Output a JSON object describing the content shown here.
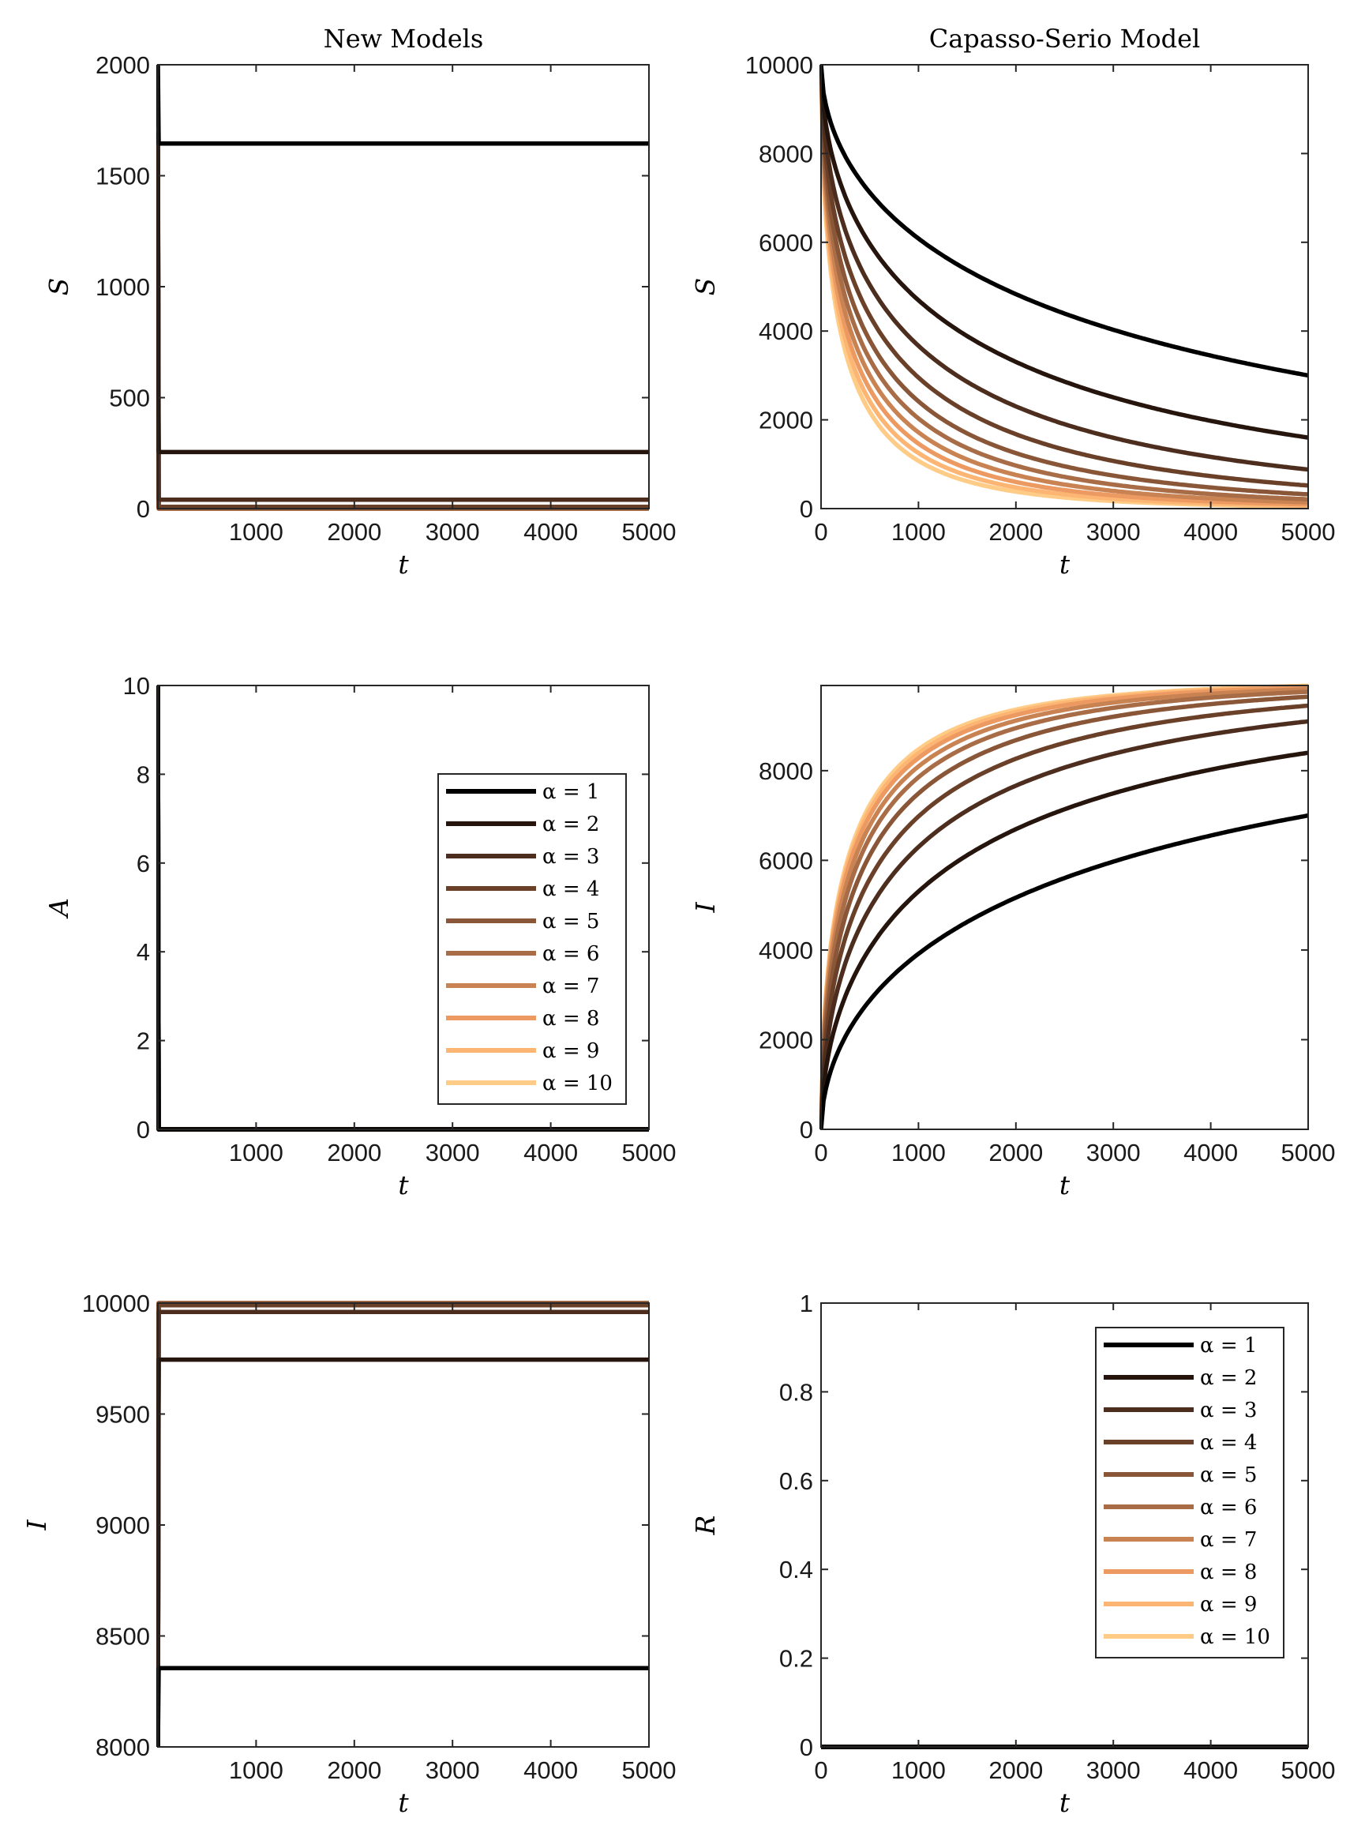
{
  "chart_data": [
    {
      "id": "new-S",
      "type": "line",
      "column": "left",
      "title": "New Models",
      "xlabel": "t",
      "ylabel": "S",
      "xlim": [
        0,
        5000
      ],
      "ylim": [
        0,
        2000
      ],
      "xticks": [
        "1000",
        "2000",
        "3000",
        "4000",
        "5000"
      ],
      "yticks": [
        "0",
        "500",
        "1000",
        "1500",
        "2000"
      ],
      "series": [
        {
          "name": "α = 1",
          "plateau": 1645,
          "start": 2000
        },
        {
          "name": "α = 2",
          "plateau": 255,
          "start": 1700
        },
        {
          "name": "α = 3",
          "plateau": 40,
          "start": 1660
        },
        {
          "name": "α = 4",
          "plateau": 8,
          "start": 1640
        },
        {
          "name": "α = 5",
          "plateau": 2,
          "start": 1620
        },
        {
          "name": "α = 6",
          "plateau": 0,
          "start": 1600
        },
        {
          "name": "α = 7",
          "plateau": 0,
          "start": 1580
        },
        {
          "name": "α = 8",
          "plateau": 0,
          "start": 1560
        },
        {
          "name": "α = 9",
          "plateau": 0,
          "start": 1550
        },
        {
          "name": "α = 10",
          "plateau": 0,
          "start": 1450
        }
      ]
    },
    {
      "id": "capasso-S",
      "type": "line",
      "column": "right",
      "title": "Capasso-Serio Model",
      "xlabel": "t",
      "ylabel": "S",
      "xlim": [
        0,
        5000
      ],
      "ylim": [
        0,
        10000
      ],
      "xticks": [
        "0",
        "1000",
        "2000",
        "3000",
        "4000",
        "5000"
      ],
      "yticks": [
        "0",
        "2000",
        "4000",
        "6000",
        "8000",
        "10000"
      ],
      "series": [
        {
          "name": "α = 1",
          "start": 10000,
          "end": 3000
        },
        {
          "name": "α = 2",
          "start": 10000,
          "end": 1600
        },
        {
          "name": "α = 3",
          "start": 10000,
          "end": 880
        },
        {
          "name": "α = 4",
          "start": 10000,
          "end": 520
        },
        {
          "name": "α = 5",
          "start": 10000,
          "end": 320
        },
        {
          "name": "α = 6",
          "start": 10000,
          "end": 210
        },
        {
          "name": "α = 7",
          "start": 10000,
          "end": 140
        },
        {
          "name": "α = 8",
          "start": 10000,
          "end": 95
        },
        {
          "name": "α = 9",
          "start": 10000,
          "end": 65
        },
        {
          "name": "α = 10",
          "start": 10000,
          "end": 45
        }
      ]
    },
    {
      "id": "new-A",
      "type": "line",
      "column": "left",
      "title": "",
      "xlabel": "t",
      "ylabel": "A",
      "xlim": [
        0,
        5000
      ],
      "ylim": [
        0,
        10
      ],
      "xticks": [
        "1000",
        "2000",
        "3000",
        "4000",
        "5000"
      ],
      "yticks": [
        "0",
        "2",
        "4",
        "6",
        "8",
        "10"
      ],
      "legend": "right",
      "series": [
        {
          "name": "α = 1",
          "plateau": 0,
          "start": 10
        },
        {
          "name": "α = 2",
          "plateau": 0,
          "start": 10
        },
        {
          "name": "α = 3",
          "plateau": 0,
          "start": 10
        },
        {
          "name": "α = 4",
          "plateau": 0,
          "start": 10
        },
        {
          "name": "α = 5",
          "plateau": 0,
          "start": 10
        },
        {
          "name": "α = 6",
          "plateau": 0,
          "start": 10
        },
        {
          "name": "α = 7",
          "plateau": 0,
          "start": 10
        },
        {
          "name": "α = 8",
          "plateau": 0,
          "start": 10
        },
        {
          "name": "α = 9",
          "plateau": 0,
          "start": 10
        },
        {
          "name": "α = 10",
          "plateau": 0,
          "start": 10
        }
      ]
    },
    {
      "id": "capasso-I",
      "type": "line",
      "column": "right",
      "title": "",
      "xlabel": "t",
      "ylabel": "I",
      "xlim": [
        0,
        5000
      ],
      "ylim": [
        0,
        9900
      ],
      "xticks": [
        "0",
        "1000",
        "2000",
        "3000",
        "4000",
        "5000"
      ],
      "yticks": [
        "0",
        "2000",
        "4000",
        "6000",
        "8000"
      ],
      "series": [
        {
          "name": "α = 1",
          "start": 0,
          "end": 7000
        },
        {
          "name": "α = 2",
          "start": 0,
          "end": 8400
        },
        {
          "name": "α = 3",
          "start": 0,
          "end": 9100
        },
        {
          "name": "α = 4",
          "start": 0,
          "end": 9450
        },
        {
          "name": "α = 5",
          "start": 0,
          "end": 9650
        },
        {
          "name": "α = 6",
          "start": 0,
          "end": 9760
        },
        {
          "name": "α = 7",
          "start": 0,
          "end": 9820
        },
        {
          "name": "α = 8",
          "start": 0,
          "end": 9860
        },
        {
          "name": "α = 9",
          "start": 0,
          "end": 9880
        },
        {
          "name": "α = 10",
          "start": 0,
          "end": 9895
        }
      ]
    },
    {
      "id": "new-I",
      "type": "line",
      "column": "left",
      "title": "",
      "xlabel": "t",
      "ylabel": "I",
      "xlim": [
        0,
        5000
      ],
      "ylim": [
        8000,
        10000
      ],
      "xticks": [
        "1000",
        "2000",
        "3000",
        "4000",
        "5000"
      ],
      "yticks": [
        "8000",
        "8500",
        "9000",
        "9500",
        "10000"
      ],
      "series": [
        {
          "name": "α = 1",
          "plateau": 8355,
          "start": 8000
        },
        {
          "name": "α = 2",
          "plateau": 9745,
          "start": 8000
        },
        {
          "name": "α = 3",
          "plateau": 9960,
          "start": 8000
        },
        {
          "name": "α = 4",
          "plateau": 9990,
          "start": 8000
        },
        {
          "name": "α = 5",
          "plateau": 9998,
          "start": 8000
        },
        {
          "name": "α = 6",
          "plateau": 10000,
          "start": 8000
        },
        {
          "name": "α = 7",
          "plateau": 10000,
          "start": 8000
        },
        {
          "name": "α = 8",
          "plateau": 10000,
          "start": 8000
        },
        {
          "name": "α = 9",
          "plateau": 10000,
          "start": 8000
        },
        {
          "name": "α = 10",
          "plateau": 10000,
          "start": 8000
        }
      ]
    },
    {
      "id": "capasso-R",
      "type": "line",
      "column": "right",
      "title": "",
      "xlabel": "t",
      "ylabel": "R",
      "xlim": [
        0,
        5000
      ],
      "ylim": [
        0,
        1
      ],
      "xticks": [
        "0",
        "1000",
        "2000",
        "3000",
        "4000",
        "5000"
      ],
      "yticks": [
        "0",
        "0.2",
        "0.4",
        "0.6",
        "0.8",
        "1"
      ],
      "legend": "top-right",
      "series": [
        {
          "name": "α = 1",
          "value": 0
        },
        {
          "name": "α = 2",
          "value": 0
        },
        {
          "name": "α = 3",
          "value": 0
        },
        {
          "name": "α = 4",
          "value": 0
        },
        {
          "name": "α = 5",
          "value": 0
        },
        {
          "name": "α = 6",
          "value": 0
        },
        {
          "name": "α = 7",
          "value": 0
        },
        {
          "name": "α = 8",
          "value": 0
        },
        {
          "name": "α = 9",
          "value": 0
        },
        {
          "name": "α = 10",
          "value": 0
        }
      ]
    }
  ],
  "series_colors": [
    "#000000",
    "#26150d",
    "#4d2e1e",
    "#6b4029",
    "#8a5638",
    "#a86c46",
    "#c98353",
    "#ec9a62",
    "#fdb573",
    "#ffcc88"
  ],
  "legend_labels": [
    "α = 1",
    "α = 2",
    "α = 3",
    "α = 4",
    "α = 5",
    "α = 6",
    "α = 7",
    "α = 8",
    "α = 9",
    "α = 10"
  ]
}
